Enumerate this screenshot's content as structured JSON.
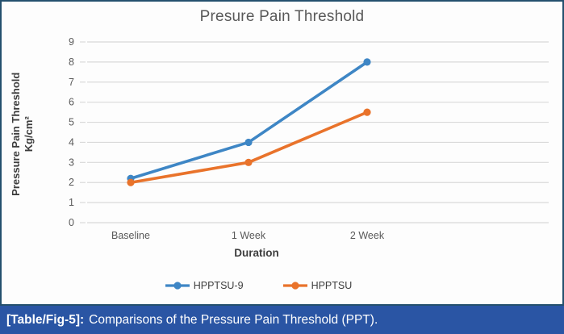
{
  "figure": {
    "caption": {
      "label": "[Table/Fig-5]:",
      "text": "Comparisons of the Pressure Pain Threshold (PPT)."
    }
  },
  "chart_data": {
    "type": "line",
    "title": "Presure Pain Threshold",
    "categories": [
      "Baseline",
      "1 Week",
      "2 Week"
    ],
    "series": [
      {
        "name": "HPPTSU-9",
        "color": "#3e86c5",
        "values": [
          2.2,
          4,
          8
        ]
      },
      {
        "name": "HPPTSU",
        "color": "#e9732b",
        "values": [
          2,
          3,
          5.5
        ]
      }
    ],
    "xlabel": "Duration",
    "ylabel": "Pressure Pain Threshold",
    "ylabel_unit": "Kg/cm²",
    "ylim": [
      0,
      9
    ],
    "y_ticks": [
      0,
      1,
      2,
      3,
      4,
      5,
      6,
      7,
      8,
      9
    ],
    "grid": "horizontal",
    "gridline_color": "#d9d9d9",
    "tick_label_color": "#595959",
    "legend_position": "bottom"
  }
}
